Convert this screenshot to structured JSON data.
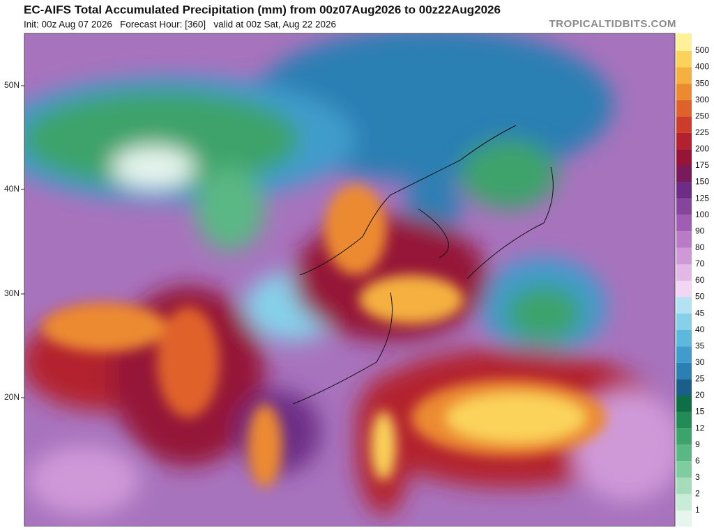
{
  "header": {
    "title": "EC-AIFS Total Accumulated Precipitation (mm) from 00z07Aug2026 to 00z22Aug2026",
    "subtitle": "Init: 00z Aug 07 2026   Forecast Hour: [360]   valid at 00z Sat, Aug 22 2026",
    "brand": "TROPICALTIDBITS.COM"
  },
  "map": {
    "lat_labels": [
      "50N",
      "40N",
      "30N",
      "20N"
    ]
  },
  "colorbar": {
    "labels": [
      500,
      400,
      350,
      300,
      250,
      225,
      200,
      175,
      150,
      125,
      100,
      90,
      80,
      70,
      60,
      50,
      45,
      40,
      35,
      30,
      25,
      20,
      15,
      12,
      9,
      6,
      3,
      2,
      1
    ],
    "colors": [
      "#fff09a",
      "#fbd35a",
      "#f5b040",
      "#ec8a30",
      "#e0622a",
      "#cd3b2a",
      "#b3202e",
      "#951437",
      "#7a1a5a",
      "#6d2d86",
      "#86449d",
      "#a05db3",
      "#b97ac6",
      "#cf99d8",
      "#e3b8e6",
      "#f3d6f3",
      "#b3e3f3",
      "#86d0ea",
      "#5db8dd",
      "#3f9ccc",
      "#2a7fb3",
      "#1a5f8a",
      "#0e6e45",
      "#238b55",
      "#3ca36a",
      "#5ab884",
      "#7fcc9f",
      "#a5dcbc",
      "#c8ecd8",
      "#e6f5ee"
    ]
  }
}
